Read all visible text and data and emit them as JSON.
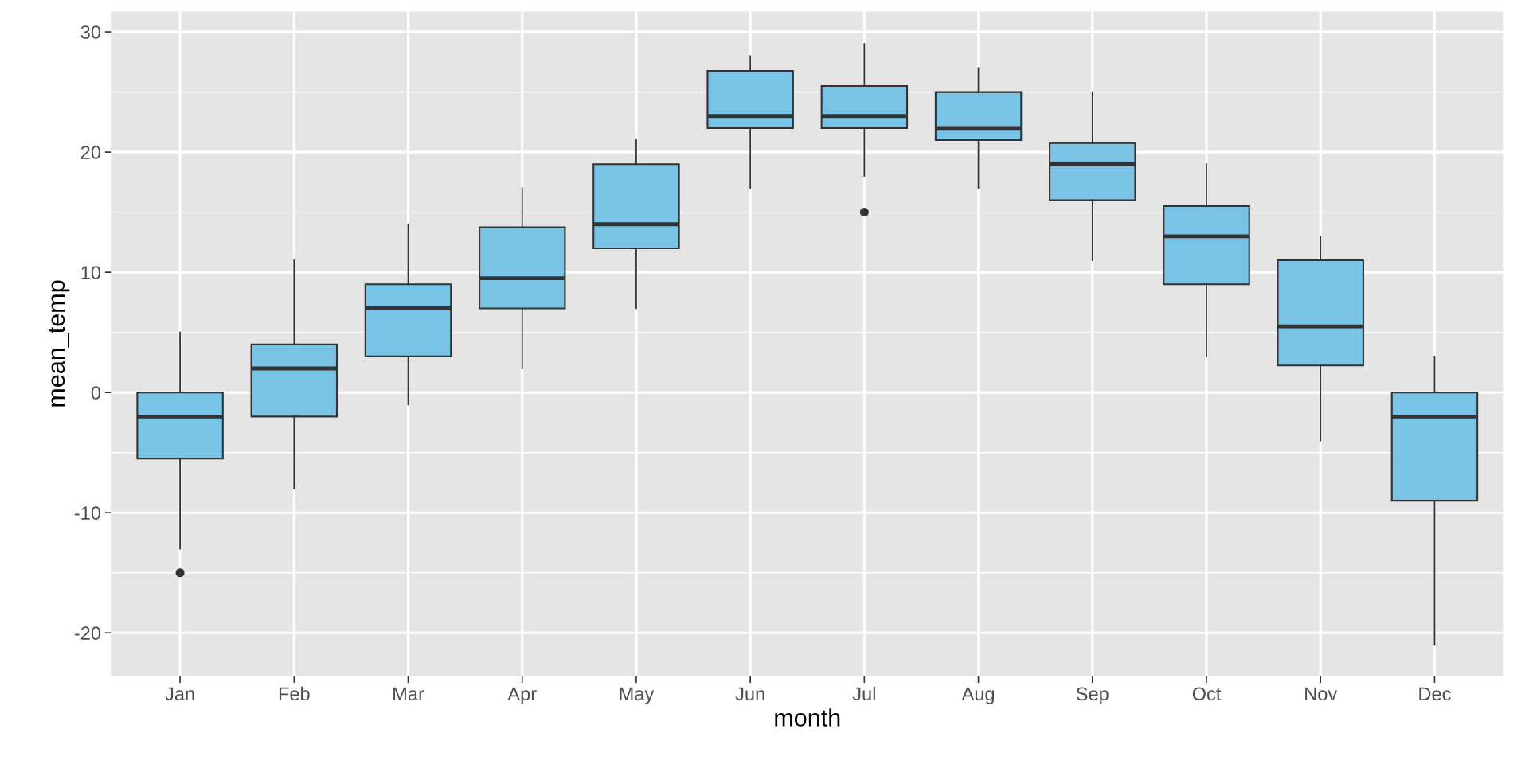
{
  "chart_data": {
    "type": "box",
    "xlabel": "month",
    "ylabel": "mean_temp",
    "categories": [
      "Jan",
      "Feb",
      "Mar",
      "Apr",
      "May",
      "Jun",
      "Jul",
      "Aug",
      "Sep",
      "Oct",
      "Nov",
      "Dec"
    ],
    "color": "#78c3e6",
    "boxes": [
      {
        "low": -13,
        "q1": -5.5,
        "median": -2,
        "q3": 0,
        "high": 5,
        "outliers": [
          -15
        ]
      },
      {
        "low": -8,
        "q1": -2,
        "median": 2,
        "q3": 4,
        "high": 11
      },
      {
        "low": -1,
        "q1": 3,
        "median": 7,
        "q3": 9,
        "high": 14
      },
      {
        "low": 2,
        "q1": 7,
        "median": 9.5,
        "q3": 13.75,
        "high": 17
      },
      {
        "low": 7,
        "q1": 12,
        "median": 14,
        "q3": 19,
        "high": 21
      },
      {
        "low": 17,
        "q1": 22,
        "median": 23,
        "q3": 26.75,
        "high": 28
      },
      {
        "low": 18,
        "q1": 22,
        "median": 23,
        "q3": 25.5,
        "high": 29,
        "outliers": [
          15
        ]
      },
      {
        "low": 17,
        "q1": 21,
        "median": 22,
        "q3": 25,
        "high": 27
      },
      {
        "low": 11,
        "q1": 16,
        "median": 19,
        "q3": 20.75,
        "high": 25
      },
      {
        "low": 3,
        "q1": 9,
        "median": 13,
        "q3": 15.5,
        "high": 19
      },
      {
        "low": -4,
        "q1": 2.25,
        "median": 5.5,
        "q3": 11,
        "high": 13
      },
      {
        "low": -21,
        "q1": -9,
        "median": -2,
        "q3": 0,
        "high": 3
      }
    ],
    "ylim": [
      -23.6,
      31.7
    ],
    "yticks": [
      -20,
      -10,
      0,
      10,
      20,
      30
    ],
    "grid": true,
    "legend": false
  }
}
